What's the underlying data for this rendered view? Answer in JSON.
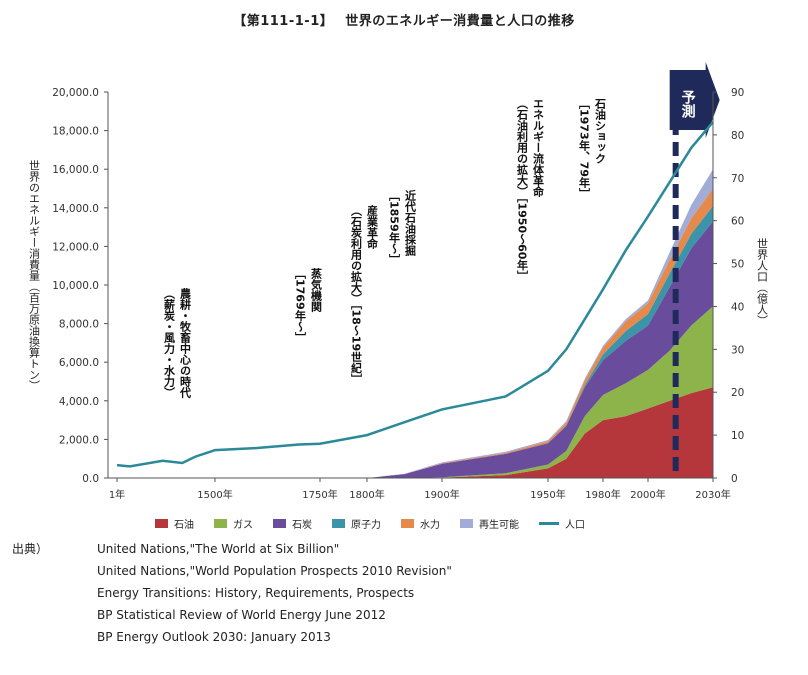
{
  "title": "【第111-1-1】　 世界のエネルギー消費量と人口の推移",
  "forecast_label": "予測",
  "chart_data": {
    "type": "area",
    "stacked": true,
    "y_left_label": "世界のエネルギー消費量（百万原油換算トン）",
    "y_right_label": "世界人口（億人）",
    "y_left_ticks": [
      "20,000.0",
      "18,000.0",
      "16,000.0",
      "14,000.0",
      "12,000.0",
      "10,000.0",
      "8,000.0",
      "6,000.0",
      "4,000.0",
      "2,000.0",
      "0.0"
    ],
    "y_right_ticks": [
      "90",
      "80",
      "70",
      "60",
      "50",
      "40",
      "30",
      "20",
      "10",
      "0"
    ],
    "ylim_left": [
      0,
      20000
    ],
    "ylim_right": [
      0,
      90
    ],
    "x_tick_labels": [
      "1年",
      "1500年",
      "1750年",
      "1800年",
      "1900年",
      "1950年",
      "1980年",
      "2000年",
      "2030年"
    ],
    "x": [
      1,
      1500,
      1750,
      1800,
      1850,
      1900,
      1930,
      1950,
      1960,
      1970,
      1980,
      1990,
      2000,
      2010,
      2020,
      2030
    ],
    "series": [
      {
        "name": "石油",
        "color": "#b5373b",
        "values": [
          0,
          0,
          0,
          0,
          0,
          20,
          150,
          500,
          1000,
          2300,
          3000,
          3200,
          3600,
          4000,
          4400,
          4700
        ]
      },
      {
        "name": "ガス",
        "color": "#8db44a",
        "values": [
          0,
          0,
          0,
          0,
          0,
          20,
          100,
          200,
          400,
          900,
          1300,
          1700,
          2000,
          2600,
          3500,
          4200
        ]
      },
      {
        "name": "石炭",
        "color": "#6a4c9c",
        "values": [
          0,
          0,
          0,
          0,
          200,
          700,
          1000,
          1100,
          1300,
          1500,
          1800,
          2200,
          2300,
          3300,
          4000,
          4400
        ]
      },
      {
        "name": "原子力",
        "color": "#3c94a8",
        "values": [
          0,
          0,
          0,
          0,
          0,
          0,
          0,
          0,
          20,
          100,
          300,
          500,
          600,
          700,
          750,
          800
        ]
      },
      {
        "name": "水力",
        "color": "#e58a4a",
        "values": [
          0,
          0,
          0,
          0,
          0,
          20,
          50,
          100,
          150,
          250,
          350,
          500,
          550,
          700,
          800,
          900
        ]
      },
      {
        "name": "再生可能",
        "color": "#a3acd6",
        "values": [
          0,
          0,
          0,
          0,
          20,
          50,
          60,
          70,
          80,
          90,
          100,
          120,
          150,
          400,
          700,
          1000
        ]
      }
    ],
    "population": {
      "name": "人口",
      "color": "#2b8a99",
      "x": [
        1,
        200,
        700,
        1000,
        1200,
        1400,
        1500,
        1600,
        1700,
        1750,
        1800,
        1850,
        1900,
        1920,
        1930,
        1950,
        1960,
        1970,
        1980,
        1990,
        2000,
        2010,
        2020,
        2030
      ],
      "values": [
        3,
        2.7,
        4,
        3.5,
        5,
        6,
        6.5,
        7,
        7.8,
        8,
        10,
        13,
        16,
        18,
        19,
        25,
        30,
        37,
        44,
        53,
        61,
        69,
        77,
        83
      ]
    },
    "forecast_start": 2010,
    "annotations": [
      "農耕・牧畜中心の時代（薪炭・風力・水力）",
      "蒸気機関［1769年〜］",
      "産業革命（石炭利用の拡大）［18〜19世紀］",
      "近代石油採掘［1859年〜］",
      "エネルギー流体革命（石油利用の拡大）［1950〜60年］",
      "石油ショック［1973年、79年］"
    ]
  },
  "sources": {
    "label": "出典）",
    "items": [
      "United Nations,\"The World at Six Billion\"",
      "United Nations,\"World Population Prospects 2010 Revision\"",
      "Energy Transitions: History, Requirements, Prospects",
      "BP Statistical Review of World Energy June 2012",
      "BP Energy Outlook 2030: January 2013"
    ]
  }
}
